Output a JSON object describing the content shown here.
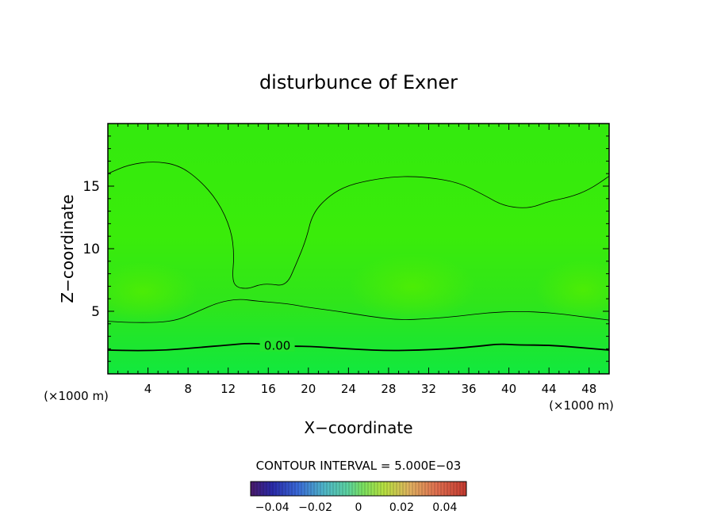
{
  "chart_data": {
    "type": "heatmap",
    "title": "disturbunce of Exner",
    "xlabel": "X−coordinate",
    "ylabel": "Z−coordinate",
    "xunit": "(×1000 m)",
    "yunit": "(×1000 m)",
    "xlim": [
      0,
      50
    ],
    "ylim": [
      0,
      20
    ],
    "xticks": [
      4,
      8,
      12,
      16,
      20,
      24,
      28,
      32,
      36,
      40,
      44,
      48
    ],
    "yticks": [
      5,
      10,
      15
    ],
    "contour_interval_text": "CONTOUR INTERVAL = 5.000E−03",
    "contour_label": "0.00",
    "colorbar": {
      "range": [
        -0.05,
        0.05
      ],
      "ticks": [
        -0.04,
        -0.02,
        0,
        0.02,
        0.04
      ],
      "tick_labels": [
        "−0.04",
        "−0.02",
        "0",
        "0.02",
        "0.04"
      ]
    },
    "contours": [
      {
        "level": 0.0,
        "labeled": true,
        "points": [
          [
            0,
            1.9
          ],
          [
            3,
            1.85
          ],
          [
            6,
            1.9
          ],
          [
            9,
            2.1
          ],
          [
            12,
            2.3
          ],
          [
            14,
            2.45
          ],
          [
            16,
            2.35
          ],
          [
            18,
            2.2
          ],
          [
            20,
            2.2
          ],
          [
            22,
            2.1
          ],
          [
            25,
            1.95
          ],
          [
            28,
            1.85
          ],
          [
            31,
            1.9
          ],
          [
            34,
            2.0
          ],
          [
            37,
            2.2
          ],
          [
            39,
            2.4
          ],
          [
            41,
            2.3
          ],
          [
            44,
            2.3
          ],
          [
            47,
            2.1
          ],
          [
            50,
            1.9
          ]
        ]
      },
      {
        "level": 0.005,
        "labeled": false,
        "points": [
          [
            0,
            4.2
          ],
          [
            2,
            4.1
          ],
          [
            5,
            4.1
          ],
          [
            7,
            4.3
          ],
          [
            9,
            5.0
          ],
          [
            11,
            5.7
          ],
          [
            13,
            6.0
          ],
          [
            15,
            5.8
          ],
          [
            18,
            5.6
          ],
          [
            20,
            5.3
          ],
          [
            23,
            5.0
          ],
          [
            26,
            4.6
          ],
          [
            29,
            4.3
          ],
          [
            32,
            4.4
          ],
          [
            35,
            4.6
          ],
          [
            38,
            4.9
          ],
          [
            41,
            5.0
          ],
          [
            44,
            4.9
          ],
          [
            47,
            4.6
          ],
          [
            50,
            4.3
          ]
        ]
      },
      {
        "level": 0.005,
        "labeled": false,
        "points": [
          [
            0,
            16.0
          ],
          [
            2,
            16.7
          ],
          [
            4.5,
            17.0
          ],
          [
            7,
            16.7
          ],
          [
            9,
            15.6
          ],
          [
            11,
            13.8
          ],
          [
            12.3,
            11.5
          ],
          [
            12.6,
            9.5
          ],
          [
            12.4,
            7.6
          ],
          [
            12.8,
            6.9
          ],
          [
            14,
            6.8
          ],
          [
            15,
            7.1
          ],
          [
            16,
            7.2
          ],
          [
            17.8,
            7.0
          ],
          [
            18.8,
            8.8
          ],
          [
            19.8,
            10.8
          ],
          [
            20.4,
            12.8
          ],
          [
            22,
            14.2
          ],
          [
            24,
            15.1
          ],
          [
            27,
            15.6
          ],
          [
            29.5,
            15.8
          ],
          [
            32,
            15.7
          ],
          [
            35,
            15.3
          ],
          [
            37.5,
            14.3
          ],
          [
            39.5,
            13.4
          ],
          [
            42,
            13.2
          ],
          [
            44,
            13.8
          ],
          [
            46,
            14.1
          ],
          [
            48,
            14.7
          ],
          [
            50,
            15.8
          ]
        ]
      }
    ]
  }
}
